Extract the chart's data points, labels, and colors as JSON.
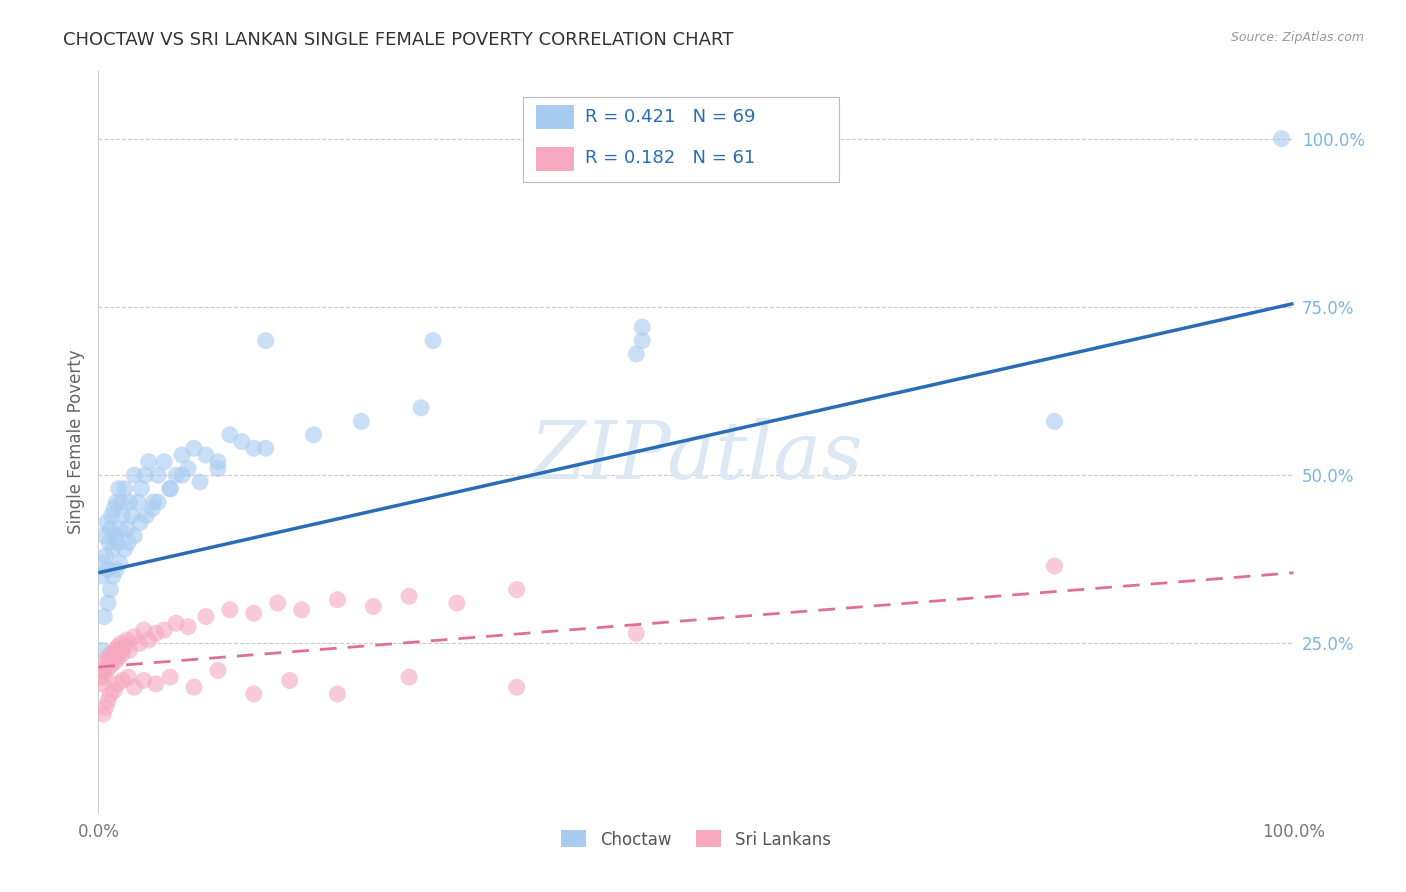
{
  "title": "CHOCTAW VS SRI LANKAN SINGLE FEMALE POVERTY CORRELATION CHART",
  "source": "Source: ZipAtlas.com",
  "ylabel": "Single Female Poverty",
  "legend_label1": "Choctaw",
  "legend_label2": "Sri Lankans",
  "R1": 0.421,
  "N1": 69,
  "R2": 0.182,
  "N2": 61,
  "color_blue": "#A8CBF0",
  "color_pink": "#F5A8C0",
  "line_blue": "#2A6DB5",
  "line_pink": "#E07090",
  "watermark": "ZIPatlas",
  "watermark_color": "#DDE8F5",
  "bg_color": "#FFFFFF",
  "grid_color": "#CCCCCC",
  "title_color": "#333333",
  "source_color": "#999999",
  "ytick_color": "#7EB4E2",
  "ytick_values": [
    0.25,
    0.5,
    0.75,
    1.0
  ],
  "ytick_labels": [
    "25.0%",
    "50.0%",
    "75.0%",
    "100.0%"
  ],
  "xtick_labels": [
    "0.0%",
    "100.0%"
  ],
  "blue_line_y0": 0.355,
  "blue_line_y1": 0.755,
  "pink_line_y0": 0.215,
  "pink_line_y1": 0.355,
  "ymin": 0.0,
  "ymax": 1.1,
  "xmin": 0.0,
  "xmax": 1.0,
  "choctaw_x": [
    0.003,
    0.004,
    0.005,
    0.006,
    0.007,
    0.008,
    0.009,
    0.01,
    0.011,
    0.012,
    0.013,
    0.014,
    0.015,
    0.016,
    0.017,
    0.018,
    0.019,
    0.02,
    0.022,
    0.024,
    0.026,
    0.028,
    0.03,
    0.033,
    0.036,
    0.039,
    0.042,
    0.046,
    0.05,
    0.055,
    0.06,
    0.065,
    0.07,
    0.075,
    0.08,
    0.09,
    0.1,
    0.11,
    0.12,
    0.13,
    0.005,
    0.008,
    0.01,
    0.012,
    0.015,
    0.018,
    0.022,
    0.025,
    0.03,
    0.035,
    0.04,
    0.045,
    0.05,
    0.06,
    0.07,
    0.085,
    0.1,
    0.14,
    0.18,
    0.22,
    0.27,
    0.14,
    0.28,
    0.45,
    0.455,
    0.455,
    0.8,
    0.99,
    0.003
  ],
  "choctaw_y": [
    0.35,
    0.37,
    0.41,
    0.38,
    0.43,
    0.36,
    0.4,
    0.42,
    0.44,
    0.39,
    0.45,
    0.41,
    0.46,
    0.4,
    0.48,
    0.42,
    0.46,
    0.44,
    0.48,
    0.42,
    0.46,
    0.44,
    0.5,
    0.46,
    0.48,
    0.5,
    0.52,
    0.46,
    0.5,
    0.52,
    0.48,
    0.5,
    0.53,
    0.51,
    0.54,
    0.53,
    0.52,
    0.56,
    0.55,
    0.54,
    0.29,
    0.31,
    0.33,
    0.35,
    0.36,
    0.37,
    0.39,
    0.4,
    0.41,
    0.43,
    0.44,
    0.45,
    0.46,
    0.48,
    0.5,
    0.49,
    0.51,
    0.54,
    0.56,
    0.58,
    0.6,
    0.7,
    0.7,
    0.68,
    0.7,
    0.72,
    0.58,
    1.0,
    0.24
  ],
  "srilanka_x": [
    0.002,
    0.003,
    0.004,
    0.005,
    0.006,
    0.007,
    0.008,
    0.009,
    0.01,
    0.011,
    0.012,
    0.013,
    0.014,
    0.015,
    0.016,
    0.017,
    0.018,
    0.019,
    0.02,
    0.022,
    0.024,
    0.026,
    0.03,
    0.034,
    0.038,
    0.042,
    0.048,
    0.055,
    0.065,
    0.075,
    0.09,
    0.11,
    0.13,
    0.15,
    0.17,
    0.2,
    0.23,
    0.26,
    0.3,
    0.35,
    0.004,
    0.006,
    0.008,
    0.01,
    0.013,
    0.016,
    0.02,
    0.025,
    0.03,
    0.038,
    0.048,
    0.06,
    0.08,
    0.1,
    0.13,
    0.16,
    0.2,
    0.26,
    0.35,
    0.45,
    0.8
  ],
  "srilanka_y": [
    0.2,
    0.19,
    0.21,
    0.2,
    0.22,
    0.21,
    0.23,
    0.215,
    0.225,
    0.235,
    0.22,
    0.23,
    0.24,
    0.225,
    0.245,
    0.23,
    0.24,
    0.25,
    0.235,
    0.245,
    0.255,
    0.24,
    0.26,
    0.25,
    0.27,
    0.255,
    0.265,
    0.27,
    0.28,
    0.275,
    0.29,
    0.3,
    0.295,
    0.31,
    0.3,
    0.315,
    0.305,
    0.32,
    0.31,
    0.33,
    0.145,
    0.155,
    0.165,
    0.175,
    0.18,
    0.19,
    0.195,
    0.2,
    0.185,
    0.195,
    0.19,
    0.2,
    0.185,
    0.21,
    0.175,
    0.195,
    0.175,
    0.2,
    0.185,
    0.265,
    0.365
  ]
}
